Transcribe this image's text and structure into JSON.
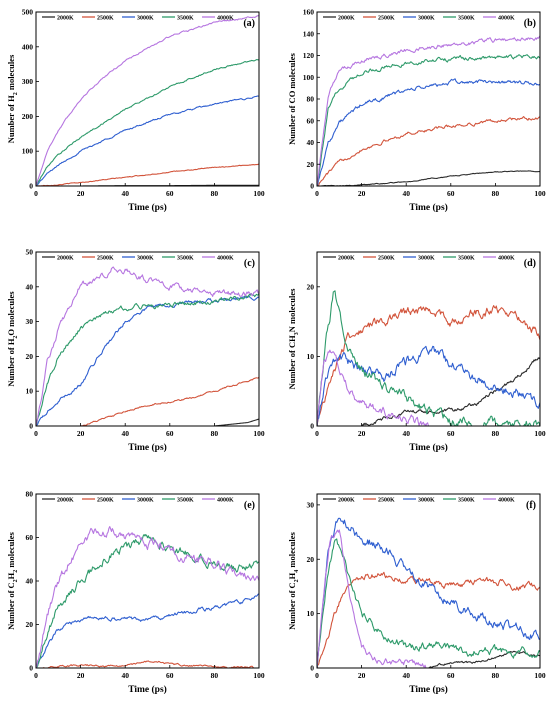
{
  "colors": {
    "2000K": "#2b2b2b",
    "2500K": "#d2543b",
    "3000K": "#2f5fd0",
    "3500K": "#2e9a6a",
    "4000K": "#b676e0"
  },
  "chart_data": [
    {
      "type": "line",
      "panel_label": "(a)",
      "xlabel": "Time (ps)",
      "ylabel_parts": [
        "Number of H",
        "2",
        " molecules"
      ],
      "xlim": [
        0,
        100
      ],
      "ylim": [
        0,
        500
      ],
      "xticks": [
        0,
        20,
        40,
        60,
        80,
        100
      ],
      "yticks": [
        0,
        100,
        200,
        300,
        400,
        500
      ],
      "legend": [
        "2000K",
        "2500K",
        "3000K",
        "3500K",
        "4000K"
      ],
      "noise": [
        0,
        1.5,
        3,
        3,
        3
      ],
      "series": [
        {
          "name": "2000K",
          "x": [
            0,
            20,
            40,
            60,
            80,
            100
          ],
          "y": [
            0,
            0,
            1,
            1,
            2,
            2
          ]
        },
        {
          "name": "2500K",
          "x": [
            0,
            10,
            20,
            40,
            60,
            80,
            100
          ],
          "y": [
            0,
            4,
            10,
            25,
            40,
            53,
            63
          ]
        },
        {
          "name": "3000K",
          "x": [
            0,
            5,
            10,
            20,
            40,
            60,
            80,
            100
          ],
          "y": [
            0,
            35,
            60,
            100,
            160,
            205,
            235,
            258
          ]
        },
        {
          "name": "3500K",
          "x": [
            0,
            5,
            10,
            20,
            40,
            60,
            80,
            100
          ],
          "y": [
            0,
            55,
            90,
            140,
            220,
            285,
            335,
            365
          ]
        },
        {
          "name": "4000K",
          "x": [
            0,
            5,
            10,
            20,
            30,
            40,
            60,
            80,
            100
          ],
          "y": [
            0,
            100,
            160,
            250,
            310,
            360,
            430,
            470,
            488
          ]
        }
      ]
    },
    {
      "type": "line",
      "panel_label": "(b)",
      "xlabel": "Time (ps)",
      "ylabel_parts": [
        "Number of CO molecules",
        "",
        ""
      ],
      "xlim": [
        0,
        100
      ],
      "ylim": [
        0,
        160
      ],
      "xticks": [
        0,
        20,
        40,
        60,
        80,
        100
      ],
      "yticks": [
        0,
        20,
        40,
        60,
        80,
        100,
        120,
        140,
        160
      ],
      "legend": [
        "2000K",
        "2500K",
        "3000K",
        "3500K",
        "4000K"
      ],
      "noise": [
        0.5,
        2,
        2.5,
        2.5,
        2.5
      ],
      "series": [
        {
          "name": "2000K",
          "x": [
            0,
            20,
            40,
            60,
            80,
            100
          ],
          "y": [
            0,
            1,
            4,
            9,
            13,
            14
          ]
        },
        {
          "name": "2500K",
          "x": [
            0,
            5,
            10,
            20,
            40,
            60,
            80,
            100
          ],
          "y": [
            0,
            12,
            22,
            34,
            48,
            55,
            60,
            63
          ]
        },
        {
          "name": "3000K",
          "x": [
            0,
            5,
            10,
            20,
            40,
            60,
            80,
            100
          ],
          "y": [
            0,
            40,
            58,
            75,
            88,
            95,
            96,
            94
          ]
        },
        {
          "name": "3500K",
          "x": [
            0,
            5,
            10,
            20,
            40,
            60,
            80,
            100
          ],
          "y": [
            0,
            70,
            90,
            105,
            113,
            117,
            118,
            119
          ]
        },
        {
          "name": "4000K",
          "x": [
            0,
            5,
            10,
            20,
            40,
            60,
            80,
            100
          ],
          "y": [
            0,
            85,
            105,
            115,
            125,
            130,
            134,
            136
          ]
        }
      ]
    },
    {
      "type": "line",
      "panel_label": "(c)",
      "xlabel": "Time (ps)",
      "ylabel_parts": [
        "Number of H",
        "2",
        "O molecules"
      ],
      "xlim": [
        0,
        100
      ],
      "ylim": [
        0,
        50
      ],
      "xticks": [
        0,
        20,
        40,
        60,
        80,
        100
      ],
      "yticks": [
        0,
        10,
        20,
        30,
        40,
        50
      ],
      "legend": [
        "2000K",
        "2500K",
        "3000K",
        "3500K",
        "4000K"
      ],
      "noise": [
        0,
        0.3,
        0.7,
        0.9,
        1.2
      ],
      "series": [
        {
          "name": "2000K",
          "x": [
            0,
            80,
            95,
            100
          ],
          "y": [
            0,
            0,
            1,
            2
          ]
        },
        {
          "name": "2500K",
          "x": [
            0,
            20,
            30,
            50,
            70,
            90,
            100
          ],
          "y": [
            0,
            0,
            2,
            6,
            8,
            12,
            14
          ]
        },
        {
          "name": "3000K",
          "x": [
            0,
            5,
            10,
            20,
            30,
            40,
            50,
            60,
            80,
            100
          ],
          "y": [
            0,
            4,
            7,
            12,
            22,
            30,
            34,
            35,
            36,
            37
          ]
        },
        {
          "name": "3500K",
          "x": [
            0,
            5,
            10,
            20,
            30,
            40,
            60,
            80,
            100
          ],
          "y": [
            0,
            12,
            20,
            28,
            32,
            34,
            35,
            36,
            38
          ]
        },
        {
          "name": "4000K",
          "x": [
            0,
            5,
            10,
            20,
            30,
            35,
            40,
            50,
            60,
            80,
            100
          ],
          "y": [
            0,
            18,
            28,
            40,
            43,
            46,
            45,
            42,
            40,
            38,
            38
          ]
        }
      ]
    },
    {
      "type": "line",
      "panel_label": "(d)",
      "xlabel": "Time (ps)",
      "ylabel_parts": [
        "Number of CH",
        "3",
        "N molecules"
      ],
      "xlim": [
        0,
        100
      ],
      "ylim": [
        0,
        25
      ],
      "xticks": [
        0,
        20,
        40,
        60,
        80,
        100
      ],
      "yticks": [
        0,
        10,
        20
      ],
      "legend": [
        "2000K",
        "2500K",
        "3000K",
        "3500K",
        "4000K"
      ],
      "noise": [
        0.4,
        0.9,
        1.0,
        1.0,
        0.8
      ],
      "series": [
        {
          "name": "2000K",
          "x": [
            0,
            20,
            30,
            40,
            50,
            60,
            70,
            80,
            90,
            100
          ],
          "y": [
            0,
            0,
            1,
            2,
            2,
            2,
            3,
            5,
            7,
            10
          ]
        },
        {
          "name": "2500K",
          "x": [
            0,
            5,
            10,
            15,
            20,
            30,
            40,
            50,
            60,
            70,
            80,
            90,
            100
          ],
          "y": [
            0,
            6,
            10,
            13,
            14,
            15,
            16,
            17,
            15,
            16,
            17,
            16,
            13
          ]
        },
        {
          "name": "3000K",
          "x": [
            0,
            5,
            10,
            20,
            30,
            40,
            50,
            60,
            70,
            80,
            90,
            100
          ],
          "y": [
            0,
            8,
            10,
            8,
            7,
            9,
            11,
            9,
            7,
            6,
            5,
            3
          ]
        },
        {
          "name": "3500K",
          "x": [
            0,
            4,
            8,
            12,
            20,
            30,
            40,
            50,
            60,
            100
          ],
          "y": [
            0,
            12,
            20,
            12,
            8,
            6,
            4,
            2,
            1,
            0
          ]
        },
        {
          "name": "4000K",
          "x": [
            0,
            3,
            6,
            10,
            15,
            20,
            30,
            40,
            50,
            100
          ],
          "y": [
            0,
            9,
            11,
            8,
            5,
            3,
            2,
            1,
            0,
            0
          ]
        }
      ]
    },
    {
      "type": "line",
      "panel_label": "(e)",
      "xlabel": "Time (ps)",
      "ylabel_parts": [
        "Number of C",
        "2",
        "H",
        "2",
        " molecules"
      ],
      "xlim": [
        0,
        100
      ],
      "ylim": [
        0,
        80
      ],
      "xticks": [
        0,
        20,
        40,
        60,
        80,
        100
      ],
      "yticks": [
        0,
        20,
        40,
        60,
        80
      ],
      "legend": [
        "2000K",
        "2500K",
        "3000K",
        "3500K",
        "4000K"
      ],
      "noise": [
        0,
        0.6,
        1.2,
        2.5,
        3.0
      ],
      "series": [
        {
          "name": "2000K",
          "x": [
            0,
            100
          ],
          "y": [
            0,
            0
          ]
        },
        {
          "name": "2500K",
          "x": [
            0,
            10,
            20,
            40,
            45,
            50,
            55,
            60,
            70,
            100
          ],
          "y": [
            0,
            1,
            1,
            1,
            2,
            3,
            3,
            2,
            1,
            0
          ]
        },
        {
          "name": "3000K",
          "x": [
            0,
            5,
            10,
            20,
            30,
            40,
            50,
            60,
            70,
            80,
            90,
            100
          ],
          "y": [
            0,
            10,
            18,
            22,
            23,
            23,
            22,
            24,
            26,
            28,
            30,
            33
          ]
        },
        {
          "name": "3500K",
          "x": [
            0,
            5,
            10,
            20,
            30,
            40,
            50,
            60,
            70,
            80,
            90,
            100
          ],
          "y": [
            0,
            15,
            28,
            40,
            50,
            55,
            60,
            55,
            52,
            48,
            46,
            48
          ]
        },
        {
          "name": "4000K",
          "x": [
            0,
            5,
            10,
            20,
            30,
            35,
            40,
            50,
            60,
            70,
            80,
            90,
            100
          ],
          "y": [
            0,
            25,
            40,
            58,
            65,
            63,
            60,
            57,
            54,
            50,
            48,
            42,
            40
          ]
        }
      ]
    },
    {
      "type": "line",
      "panel_label": "(f)",
      "xlabel": "Time (ps)",
      "ylabel_parts": [
        "Number of C",
        "2",
        "H",
        "4",
        " molecules"
      ],
      "xlim": [
        0,
        100
      ],
      "ylim": [
        0,
        32
      ],
      "xticks": [
        0,
        20,
        40,
        60,
        80,
        100
      ],
      "yticks": [
        0,
        10,
        20,
        30
      ],
      "legend": [
        "2000K",
        "2500K",
        "3000K",
        "3500K",
        "4000K"
      ],
      "noise": [
        0.3,
        0.8,
        1.2,
        1.0,
        0.8
      ],
      "series": [
        {
          "name": "2000K",
          "x": [
            0,
            50,
            60,
            70,
            80,
            90,
            100
          ],
          "y": [
            0,
            0,
            1,
            1,
            2,
            3,
            2
          ]
        },
        {
          "name": "2500K",
          "x": [
            0,
            5,
            10,
            15,
            20,
            30,
            40,
            50,
            60,
            70,
            80,
            90,
            100
          ],
          "y": [
            0,
            6,
            12,
            16,
            17,
            17,
            16,
            16,
            15,
            16,
            16,
            15,
            15
          ]
        },
        {
          "name": "3000K",
          "x": [
            0,
            5,
            10,
            15,
            20,
            30,
            40,
            50,
            60,
            70,
            80,
            90,
            100
          ],
          "y": [
            0,
            22,
            28,
            26,
            24,
            22,
            18,
            15,
            12,
            10,
            8,
            7,
            6
          ]
        },
        {
          "name": "3500K",
          "x": [
            0,
            4,
            8,
            12,
            16,
            20,
            30,
            40,
            50,
            60,
            70,
            80,
            90,
            100
          ],
          "y": [
            0,
            15,
            24,
            20,
            14,
            10,
            6,
            4,
            4,
            4,
            3,
            3,
            3,
            3
          ]
        },
        {
          "name": "4000K",
          "x": [
            0,
            3,
            6,
            10,
            15,
            20,
            25,
            30,
            40,
            50,
            100
          ],
          "y": [
            0,
            14,
            24,
            25,
            12,
            4,
            2,
            1,
            1,
            0,
            0
          ]
        }
      ]
    }
  ]
}
